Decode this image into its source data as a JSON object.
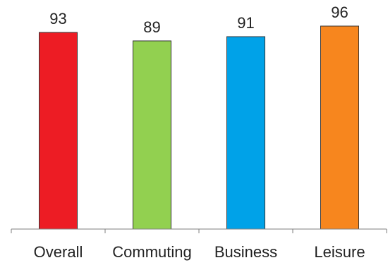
{
  "chart_data": {
    "type": "bar",
    "categories": [
      "Overall",
      "Commuting",
      "Business",
      "Leisure"
    ],
    "values": [
      93,
      89,
      91,
      96
    ],
    "data_labels": [
      "93",
      "89",
      "91",
      "96"
    ],
    "colors": [
      "#ed1c24",
      "#92d050",
      "#00a2e8",
      "#f7861e"
    ],
    "title": "",
    "xlabel": "",
    "ylabel": "",
    "ylim": [
      0,
      100
    ],
    "grid": false,
    "legend": "none"
  }
}
